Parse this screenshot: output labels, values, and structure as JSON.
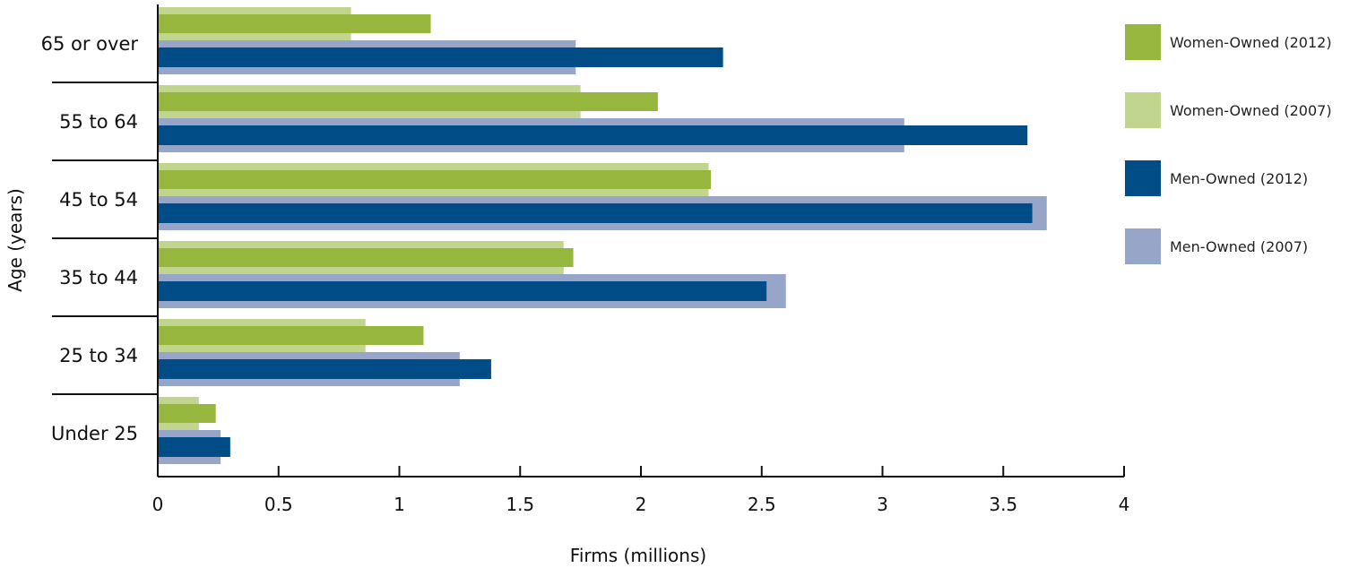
{
  "chart_data": {
    "type": "bar",
    "orientation": "horizontal",
    "categories": [
      "65 or over",
      "55 to 64",
      "45 to 54",
      "35 to 44",
      "25 to 34",
      "Under 25"
    ],
    "series": [
      {
        "name": "Women-Owned (2012)",
        "values": [
          1.13,
          2.07,
          2.29,
          1.72,
          1.1,
          0.24
        ],
        "color": "#96b63d"
      },
      {
        "name": "Women-Owned (2007)",
        "values": [
          0.8,
          1.75,
          2.28,
          1.68,
          0.86,
          0.17
        ],
        "color": "#c2d58f"
      },
      {
        "name": "Men-Owned (2012)",
        "values": [
          2.34,
          3.6,
          3.62,
          2.52,
          1.38,
          0.3
        ],
        "color": "#004c87"
      },
      {
        "name": "Men-Owned (2007)",
        "values": [
          1.73,
          3.09,
          3.68,
          2.6,
          1.25,
          0.26
        ],
        "color": "#96a5c8"
      }
    ],
    "xlabel": "Firms (millions)",
    "ylabel": "Age (years)",
    "xlim": [
      0,
      4
    ],
    "xticks": [
      "0",
      "0.5",
      "1",
      "1.5",
      "2",
      "2.5",
      "3",
      "3.5",
      "4"
    ],
    "grid": false,
    "legend_position": "right"
  }
}
